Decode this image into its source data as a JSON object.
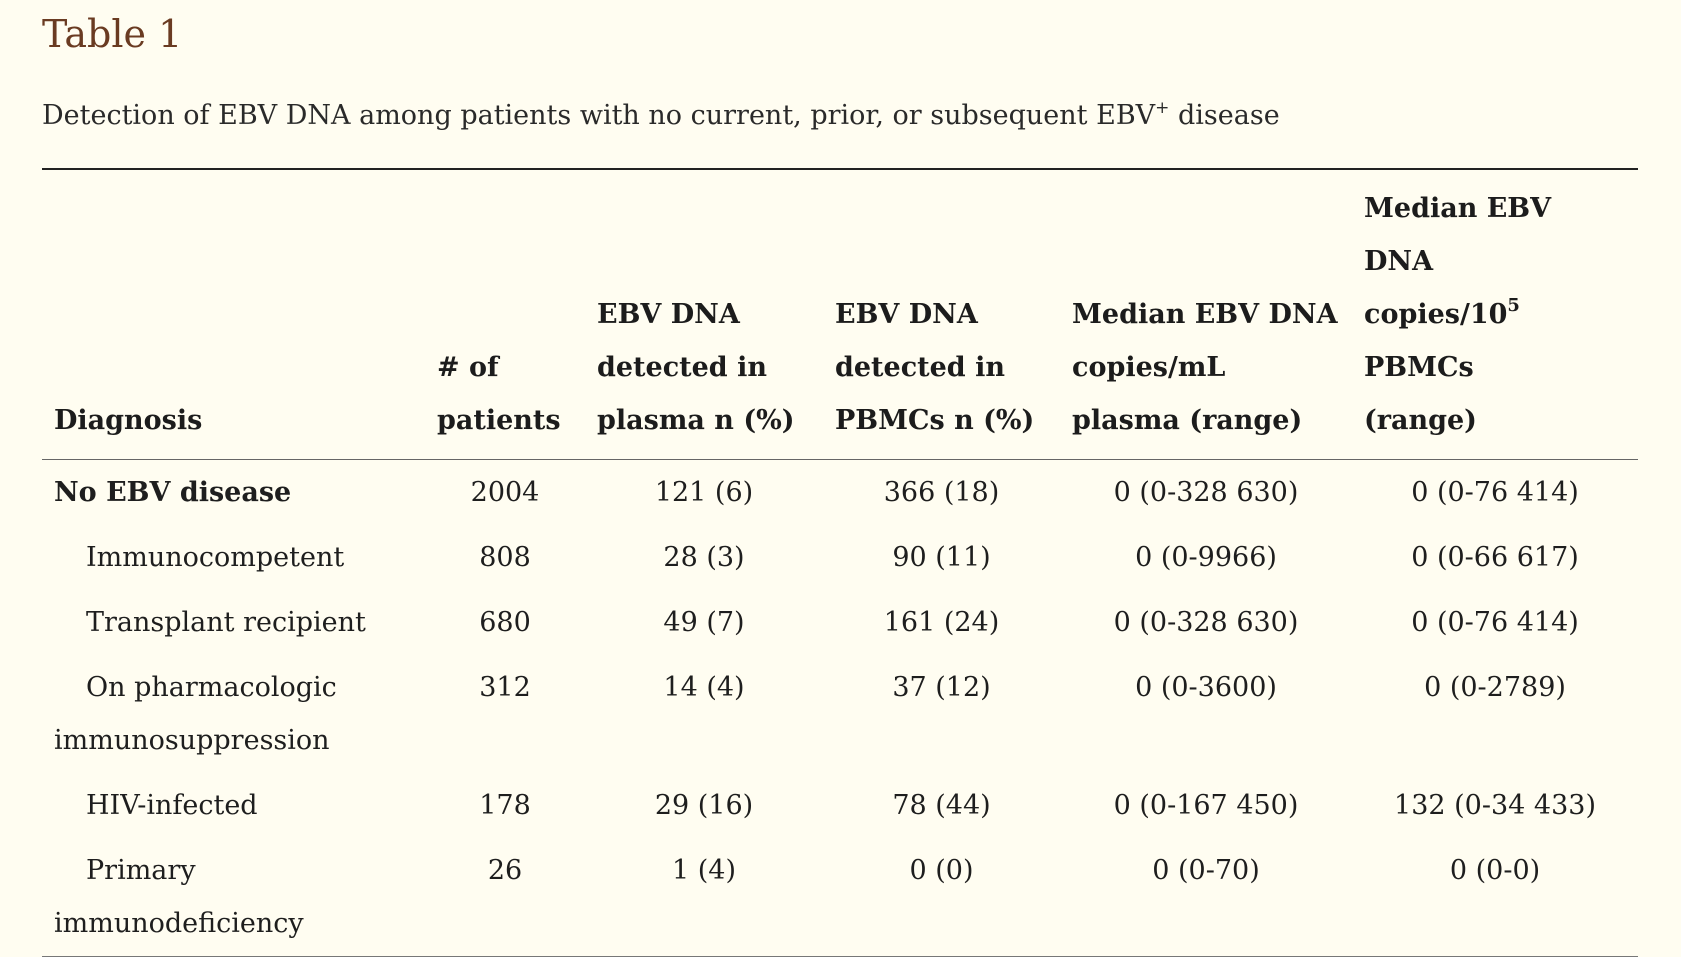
{
  "table_label": "Table 1",
  "caption": {
    "text": "Detection of EBV DNA among patients with no current, prior, or subsequent EBV",
    "superscript": "+",
    "suffix": " disease"
  },
  "headers": {
    "diagnosis": "Diagnosis",
    "patients_line1": "# of",
    "patients_line2": "patients",
    "plasma_line1": "EBV DNA",
    "plasma_line2": "detected in",
    "plasma_line3": "plasma n (%)",
    "pbmc_line1": "EBV DNA",
    "pbmc_line2": "detected in",
    "pbmc_line3": "PBMCs n (%)",
    "median_plasma_line1": "Median EBV DNA",
    "median_plasma_line2": "copies/mL",
    "median_plasma_line3": "plasma (range)",
    "median_pbmc_line1": "Median EBV DNA",
    "median_pbmc_line2a": "copies/10",
    "median_pbmc_sup": "5",
    "median_pbmc_line2b": " PBMCs",
    "median_pbmc_line3": "(range)"
  },
  "rows": [
    {
      "diagnosis": "No EBV disease",
      "patients": "2004",
      "plasma": "121 (6)",
      "pbmc": "366 (18)",
      "median_plasma": "0 (0-328 630)",
      "median_pbmc": "0 (0-76 414)"
    },
    {
      "diagnosis": "Immunocompetent",
      "patients": "808",
      "plasma": "28 (3)",
      "pbmc": "90 (11)",
      "median_plasma": "0 (0-9966)",
      "median_pbmc": "0 (0-66 617)"
    },
    {
      "diagnosis": "Transplant recipient",
      "patients": "680",
      "plasma": "49 (7)",
      "pbmc": "161 (24)",
      "median_plasma": "0 (0-328 630)",
      "median_pbmc": "0 (0-76 414)"
    },
    {
      "diagnosis": "On pharmacologic immunosuppression",
      "patients": "312",
      "plasma": "14 (4)",
      "pbmc": "37 (12)",
      "median_plasma": "0 (0-3600)",
      "median_pbmc": "0 (0-2789)"
    },
    {
      "diagnosis": "HIV-infected",
      "patients": "178",
      "plasma": "29 (16)",
      "pbmc": "78 (44)",
      "median_plasma": "0 (0-167 450)",
      "median_pbmc": "132 (0-34 433)"
    },
    {
      "diagnosis": "Primary immunodeficiency",
      "patients": "26",
      "plasma": "1 (4)",
      "pbmc": "0 (0)",
      "median_plasma": "0 (0-70)",
      "median_pbmc": "0 (0-0)"
    }
  ]
}
